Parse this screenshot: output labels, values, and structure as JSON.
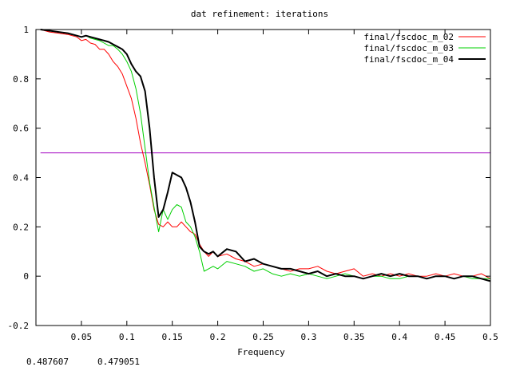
{
  "chart_data": {
    "type": "line",
    "title": "dat refinement: iterations",
    "xlabel": "Frequency",
    "ylabel": "",
    "xlim": [
      0,
      0.5
    ],
    "ylim": [
      -0.2,
      1
    ],
    "xticks": [
      0.05,
      0.1,
      0.15,
      0.2,
      0.25,
      0.3,
      0.35,
      0.4,
      0.45,
      0.5
    ],
    "xtick_labels": [
      "0.05",
      "0.1",
      "0.15",
      "0.2",
      "0.25",
      "0.3",
      "0.35",
      "0.4",
      "0.45",
      "0.5"
    ],
    "yticks": [
      -0.2,
      0,
      0.2,
      0.4,
      0.6,
      0.8,
      1
    ],
    "ytick_labels": [
      "-0.2",
      "0",
      "0.2",
      "0.4",
      "0.6",
      "0.8",
      "1"
    ],
    "grid": false,
    "legend_position": "top-right",
    "threshold": {
      "y": 0.5,
      "color": "#a000c0"
    },
    "series": [
      {
        "name": "final/fscdoc_m_02",
        "color": "#ff0000",
        "x": [
          0.005,
          0.015,
          0.025,
          0.035,
          0.045,
          0.05,
          0.055,
          0.06,
          0.065,
          0.07,
          0.075,
          0.08,
          0.085,
          0.09,
          0.095,
          0.1,
          0.105,
          0.11,
          0.115,
          0.12,
          0.125,
          0.13,
          0.135,
          0.14,
          0.145,
          0.15,
          0.155,
          0.16,
          0.165,
          0.17,
          0.175,
          0.18,
          0.185,
          0.19,
          0.195,
          0.2,
          0.21,
          0.22,
          0.23,
          0.24,
          0.25,
          0.26,
          0.27,
          0.28,
          0.29,
          0.3,
          0.31,
          0.32,
          0.33,
          0.34,
          0.35,
          0.36,
          0.37,
          0.38,
          0.39,
          0.4,
          0.41,
          0.42,
          0.43,
          0.44,
          0.45,
          0.46,
          0.47,
          0.48,
          0.49,
          0.5
        ],
        "y": [
          1.0,
          0.99,
          0.985,
          0.98,
          0.97,
          0.955,
          0.96,
          0.945,
          0.94,
          0.92,
          0.92,
          0.9,
          0.87,
          0.85,
          0.82,
          0.77,
          0.72,
          0.64,
          0.54,
          0.46,
          0.37,
          0.27,
          0.21,
          0.2,
          0.22,
          0.2,
          0.2,
          0.22,
          0.2,
          0.18,
          0.17,
          0.13,
          0.1,
          0.08,
          0.1,
          0.08,
          0.09,
          0.07,
          0.06,
          0.04,
          0.05,
          0.04,
          0.03,
          0.02,
          0.03,
          0.03,
          0.04,
          0.02,
          0.01,
          0.02,
          0.03,
          0.0,
          0.01,
          0.0,
          0.01,
          0.0,
          0.01,
          0.0,
          0.0,
          0.01,
          0.0,
          0.01,
          0.0,
          0.0,
          0.01,
          -0.01
        ]
      },
      {
        "name": "final/fscdoc_m_03",
        "color": "#00d000",
        "x": [
          0.005,
          0.015,
          0.025,
          0.035,
          0.045,
          0.05,
          0.055,
          0.06,
          0.065,
          0.07,
          0.075,
          0.08,
          0.085,
          0.09,
          0.095,
          0.1,
          0.105,
          0.11,
          0.115,
          0.12,
          0.125,
          0.13,
          0.135,
          0.14,
          0.145,
          0.15,
          0.155,
          0.16,
          0.165,
          0.17,
          0.175,
          0.18,
          0.185,
          0.19,
          0.195,
          0.2,
          0.21,
          0.22,
          0.23,
          0.24,
          0.25,
          0.26,
          0.27,
          0.28,
          0.29,
          0.3,
          0.31,
          0.32,
          0.33,
          0.34,
          0.35,
          0.36,
          0.37,
          0.38,
          0.39,
          0.4,
          0.41,
          0.42,
          0.43,
          0.44,
          0.45,
          0.46,
          0.47,
          0.48,
          0.49,
          0.5
        ],
        "y": [
          1.0,
          0.995,
          0.99,
          0.985,
          0.975,
          0.97,
          0.975,
          0.965,
          0.96,
          0.955,
          0.945,
          0.935,
          0.935,
          0.92,
          0.9,
          0.87,
          0.83,
          0.76,
          0.66,
          0.52,
          0.38,
          0.28,
          0.18,
          0.27,
          0.23,
          0.27,
          0.29,
          0.28,
          0.22,
          0.2,
          0.16,
          0.1,
          0.02,
          0.03,
          0.04,
          0.03,
          0.06,
          0.05,
          0.04,
          0.02,
          0.03,
          0.01,
          0.0,
          0.01,
          0.0,
          0.01,
          0.0,
          -0.01,
          0.0,
          0.01,
          0.0,
          -0.01,
          0.0,
          0.0,
          -0.01,
          -0.01,
          0.0,
          0.0,
          -0.01,
          0.0,
          0.0,
          -0.01,
          0.0,
          -0.01,
          -0.01,
          -0.01
        ]
      },
      {
        "name": "final/fscdoc_m_04",
        "color": "#000000",
        "x": [
          0.005,
          0.015,
          0.025,
          0.035,
          0.045,
          0.05,
          0.055,
          0.06,
          0.065,
          0.07,
          0.075,
          0.08,
          0.085,
          0.09,
          0.095,
          0.1,
          0.105,
          0.11,
          0.115,
          0.12,
          0.125,
          0.13,
          0.135,
          0.14,
          0.145,
          0.15,
          0.155,
          0.16,
          0.165,
          0.17,
          0.175,
          0.18,
          0.185,
          0.19,
          0.195,
          0.2,
          0.21,
          0.22,
          0.23,
          0.24,
          0.25,
          0.26,
          0.27,
          0.28,
          0.29,
          0.3,
          0.31,
          0.32,
          0.33,
          0.34,
          0.35,
          0.36,
          0.37,
          0.38,
          0.39,
          0.4,
          0.41,
          0.42,
          0.43,
          0.44,
          0.45,
          0.46,
          0.47,
          0.48,
          0.49,
          0.5
        ],
        "y": [
          1.0,
          0.995,
          0.99,
          0.985,
          0.975,
          0.97,
          0.975,
          0.97,
          0.965,
          0.96,
          0.955,
          0.95,
          0.94,
          0.93,
          0.92,
          0.9,
          0.86,
          0.83,
          0.81,
          0.75,
          0.6,
          0.4,
          0.24,
          0.27,
          0.34,
          0.42,
          0.41,
          0.4,
          0.36,
          0.3,
          0.22,
          0.12,
          0.1,
          0.09,
          0.1,
          0.08,
          0.11,
          0.1,
          0.06,
          0.07,
          0.05,
          0.04,
          0.03,
          0.03,
          0.02,
          0.01,
          0.02,
          0.0,
          0.01,
          0.0,
          0.0,
          -0.01,
          0.0,
          0.01,
          0.0,
          0.01,
          0.0,
          0.0,
          -0.01,
          0.0,
          0.0,
          -0.01,
          0.0,
          0.0,
          -0.01,
          -0.02
        ]
      }
    ]
  },
  "footer": {
    "readout_1": "0.487607",
    "readout_2": "0.479051"
  }
}
